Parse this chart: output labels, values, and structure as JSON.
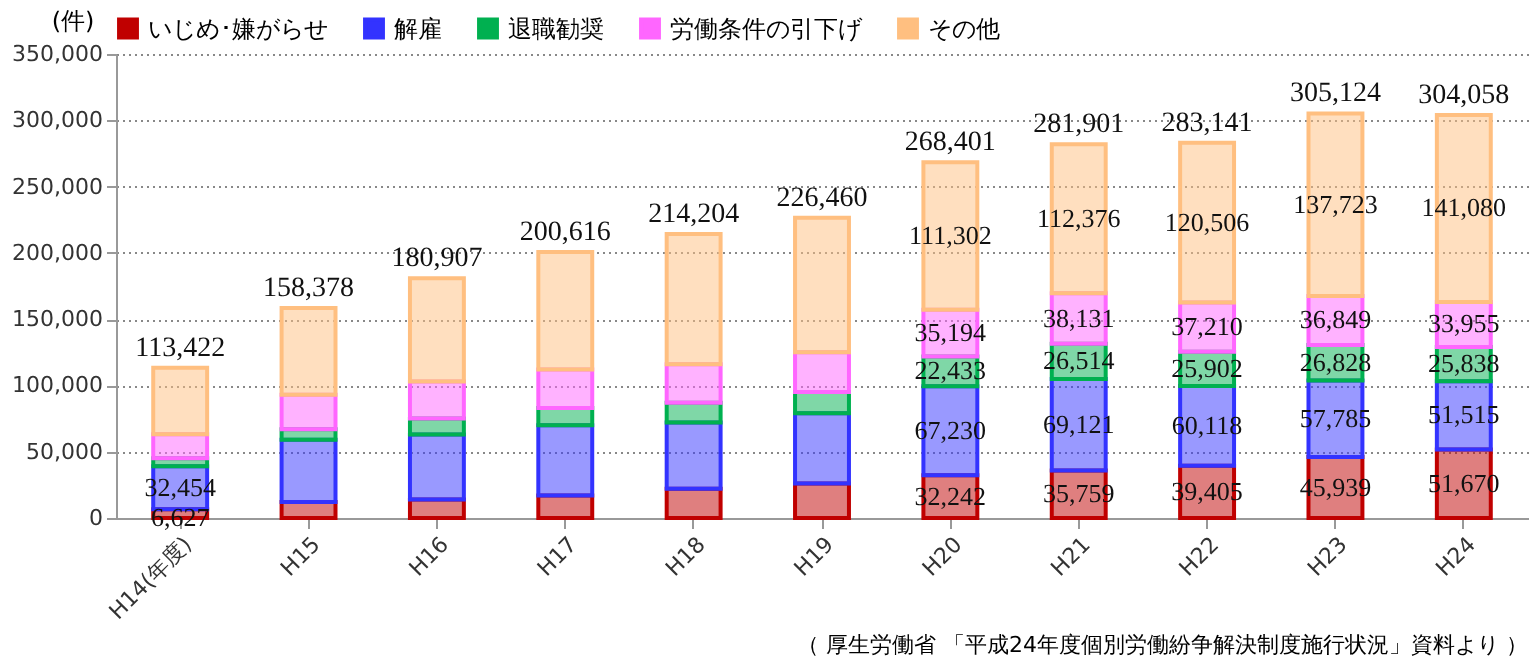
{
  "chart_data": {
    "type": "bar",
    "stacked": true,
    "ylabel": "(件)",
    "categories": [
      "H14(年度)",
      "H15",
      "H16",
      "H17",
      "H18",
      "H19",
      "H20",
      "H21",
      "H22",
      "H23",
      "H24"
    ],
    "series": [
      {
        "name": "いじめ･嫌がらせ",
        "color": "#c00000",
        "values": [
          6627,
          12000,
          14000,
          17000,
          22000,
          26000,
          32242,
          35759,
          39405,
          45939,
          51670
        ],
        "value_labels": [
          "6,627",
          null,
          null,
          null,
          null,
          null,
          "32,242",
          "35,759",
          "39,405",
          "45,939",
          "51,670"
        ]
      },
      {
        "name": "解雇",
        "color": "#3333ff",
        "values": [
          32454,
          47000,
          49000,
          53000,
          50000,
          53000,
          67230,
          69121,
          60118,
          57785,
          51515
        ],
        "value_labels": [
          "32,454",
          null,
          null,
          null,
          null,
          null,
          "67,230",
          "69,121",
          "60,118",
          "57,785",
          "51,515"
        ]
      },
      {
        "name": "退職勧奨",
        "color": "#00b050",
        "values": [
          6000,
          8000,
          12000,
          13000,
          15000,
          16000,
          22433,
          26514,
          25902,
          26828,
          25838
        ],
        "value_labels": [
          null,
          null,
          null,
          null,
          null,
          null,
          "22,433",
          "26,514",
          "25,902",
          "26,828",
          "25,838"
        ]
      },
      {
        "name": "労働条件の引下げ",
        "color": "#ff66ff",
        "values": [
          18000,
          26000,
          28000,
          29000,
          29000,
          30000,
          35194,
          38131,
          37210,
          36849,
          33955
        ],
        "value_labels": [
          null,
          null,
          null,
          null,
          null,
          null,
          "35,194",
          "38,131",
          "37,210",
          "36,849",
          "33,955"
        ]
      },
      {
        "name": "その他",
        "color": "#ffbf80",
        "values": [
          50341,
          65378,
          77907,
          88616,
          98204,
          101460,
          111302,
          112376,
          120506,
          137723,
          141080
        ],
        "value_labels": [
          null,
          null,
          null,
          null,
          null,
          null,
          "111,302",
          "112,376",
          "120,506",
          "137,723",
          "141,080"
        ]
      }
    ],
    "totals": [
      "113,422",
      "158,378",
      "180,907",
      "200,616",
      "214,204",
      "226,460",
      "268,401",
      "281,901",
      "283,141",
      "305,124",
      "304,058"
    ],
    "ylim": [
      0,
      350000
    ],
    "yticks": [
      0,
      {
        "value": 50000,
        "label": "50,000"
      },
      {
        "value": 100000,
        "label": "100,000"
      },
      {
        "value": 150000,
        "label": "150,000"
      },
      {
        "value": 200000,
        "label": "200,000"
      },
      {
        "value": 250000,
        "label": "250,000"
      },
      {
        "value": 300000,
        "label": "300,000"
      },
      {
        "value": 350000,
        "label": "350,000"
      }
    ],
    "grid": "y",
    "legend": "top",
    "annotations": [
      "（ 厚生労働省 「平成24年度個別労働紛争解決制度施行状況」資料より ）"
    ]
  }
}
